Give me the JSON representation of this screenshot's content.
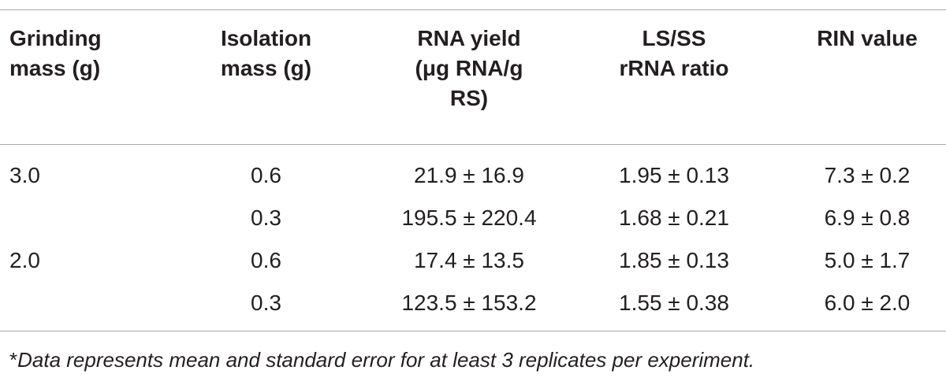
{
  "table": {
    "headers": {
      "grinding_mass": [
        "Grinding",
        "mass (g)"
      ],
      "isolation_mass": [
        "Isolation",
        "mass (g)"
      ],
      "rna_yield": [
        "RNA yield",
        "(μg RNA/g",
        "RS)"
      ],
      "ls_ss_ratio": [
        "LS/SS",
        "rRNA ratio"
      ],
      "rin_value": [
        "RIN value"
      ]
    },
    "rows": [
      {
        "grinding_mass": "3.0",
        "isolation_mass": "0.6",
        "rna_yield": "21.9 ± 16.9",
        "ls_ss_ratio": "1.95 ± 0.13",
        "rin_value": "7.3 ± 0.2"
      },
      {
        "grinding_mass": "",
        "isolation_mass": "0.3",
        "rna_yield": "195.5 ± 220.4",
        "ls_ss_ratio": "1.68 ± 0.21",
        "rin_value": "6.9 ± 0.8"
      },
      {
        "grinding_mass": "2.0",
        "isolation_mass": "0.6",
        "rna_yield": "17.4 ± 13.5",
        "ls_ss_ratio": "1.85 ± 0.13",
        "rin_value": "5.0 ± 1.7"
      },
      {
        "grinding_mass": "",
        "isolation_mass": "0.3",
        "rna_yield": "123.5 ± 153.2",
        "ls_ss_ratio": "1.55 ± 0.38",
        "rin_value": "6.0 ± 2.0"
      }
    ]
  },
  "footnote": {
    "marker": "*",
    "text": "Data represents mean and standard error for at least 3 replicates per experiment."
  },
  "colors": {
    "text": "#231f20",
    "rule": "#a7a9ac",
    "background": "#ffffff"
  }
}
